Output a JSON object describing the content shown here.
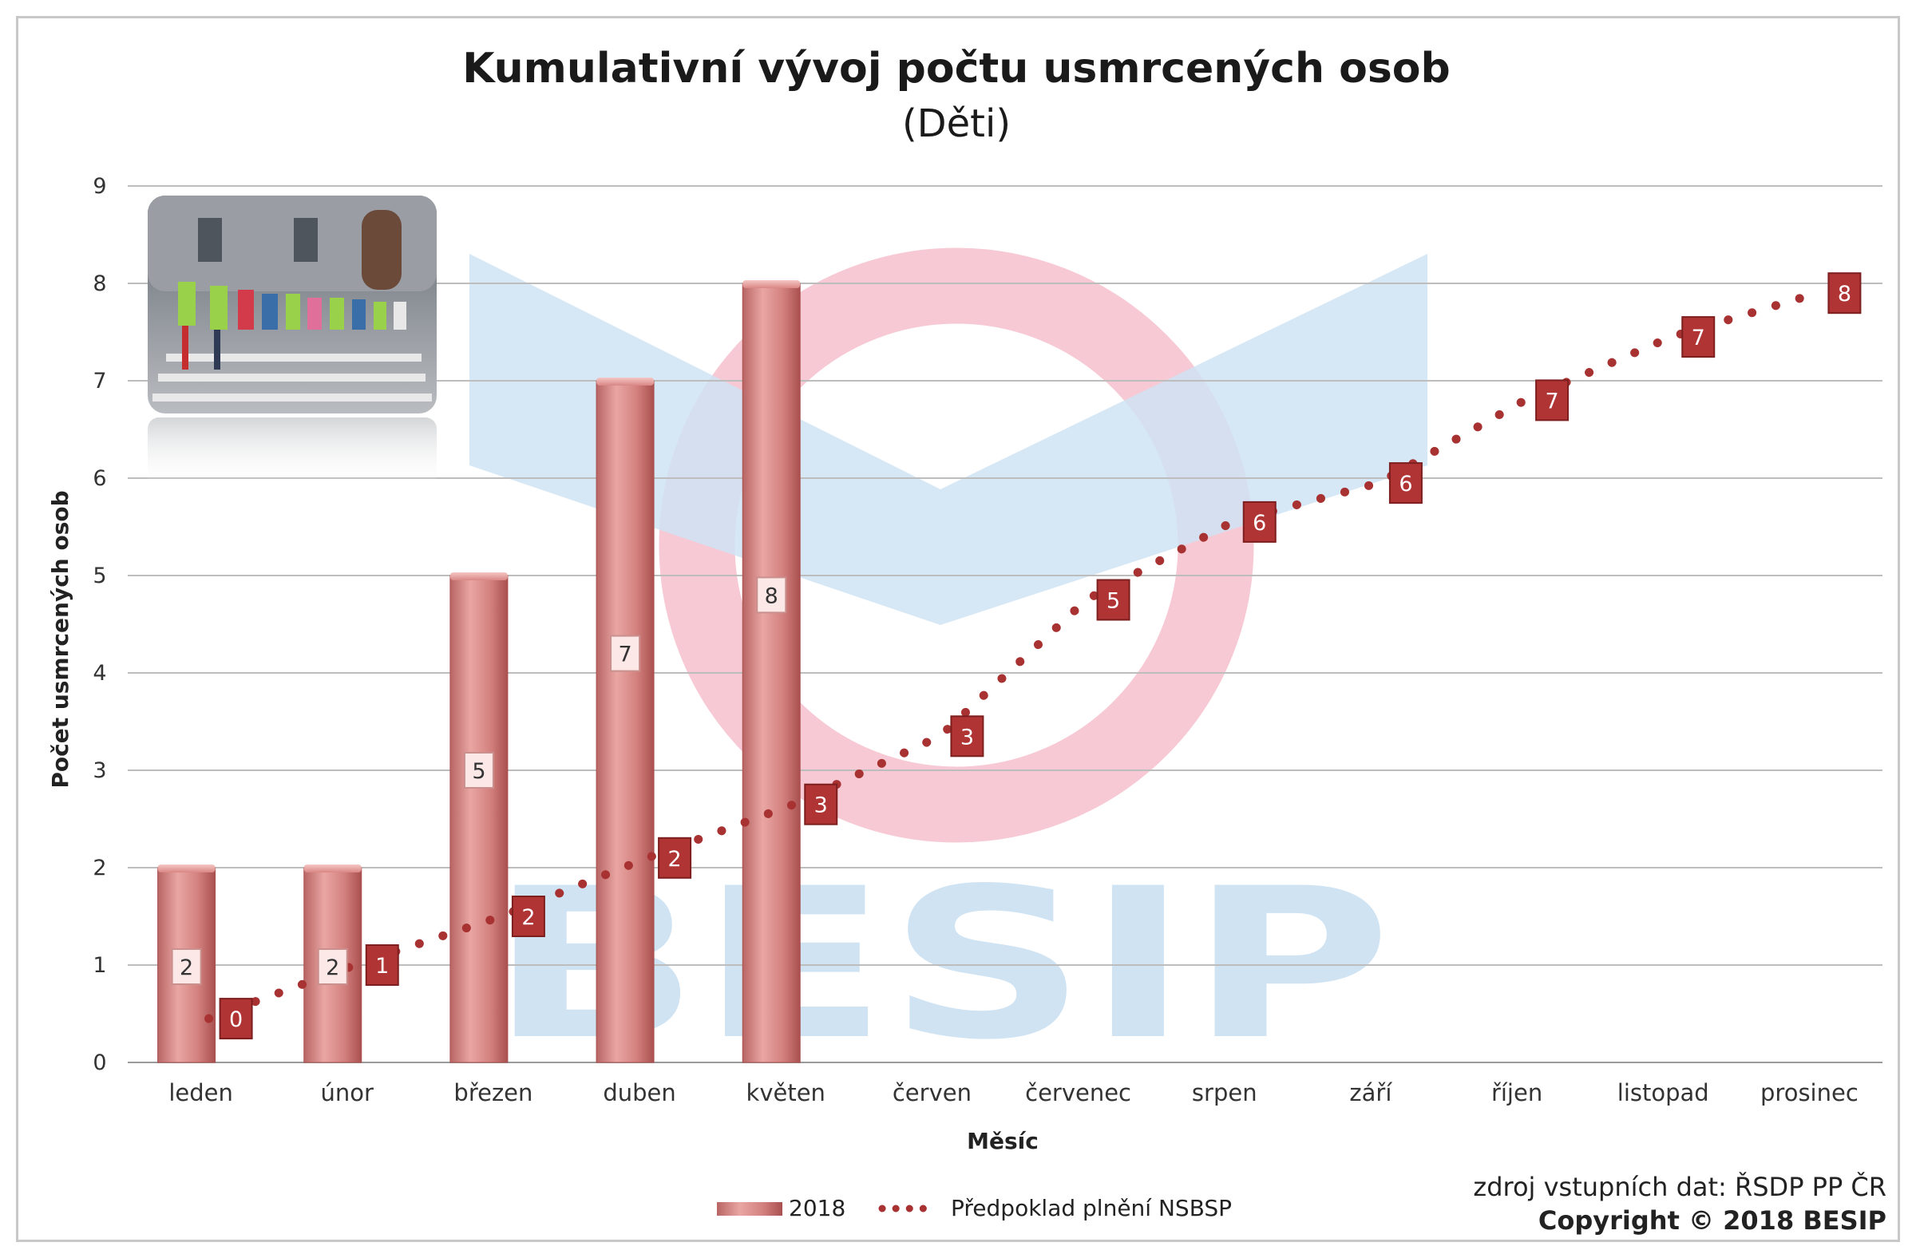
{
  "watermark_text": "BESIP",
  "legend": {
    "bar_label": "2018",
    "line_label": "Předpoklad plnění NSBSP"
  },
  "footer": {
    "source": "zdroj vstupních dat: ŘSDP PP ČR",
    "copyright": "Copyright © 2018 BESIP"
  },
  "colors": {
    "bar": "#d98684",
    "bar_dark": "#b25c5b",
    "line": "#a83232",
    "grid": "#bdbdbd",
    "watermark_blue": "#cfe3f3",
    "watermark_pink": "#f7c9d4"
  },
  "chart_data": {
    "type": "bar",
    "title": "Kumulativní vývoj počtu usmrcených osob",
    "subtitle": "(Děti)",
    "xlabel": "Měsíc",
    "ylabel": "Počet usmrcených osob",
    "ylim": [
      0,
      9
    ],
    "yticks": [
      0,
      1,
      2,
      3,
      4,
      5,
      6,
      7,
      8,
      9
    ],
    "grid": true,
    "legend_position": "bottom",
    "categories": [
      "leden",
      "únor",
      "březen",
      "duben",
      "květen",
      "červen",
      "červenec",
      "srpen",
      "září",
      "říjen",
      "listopad",
      "prosinec"
    ],
    "series": [
      {
        "name": "2018",
        "type": "bar",
        "values": [
          2,
          2,
          5,
          7,
          8,
          null,
          null,
          null,
          null,
          null,
          null,
          null
        ],
        "data_labels": [
          "2",
          "2",
          "5",
          "7",
          "8"
        ]
      },
      {
        "name": "Předpoklad plnění NSBSP",
        "type": "line",
        "style": "dotted",
        "values": [
          0.45,
          1.0,
          1.5,
          2.1,
          2.65,
          3.35,
          4.75,
          5.55,
          5.95,
          6.8,
          7.45,
          7.9
        ],
        "data_labels": [
          "0",
          "1",
          "2",
          "2",
          "3",
          "3",
          "5",
          "6",
          "6",
          "7",
          "7",
          "8"
        ]
      }
    ]
  }
}
